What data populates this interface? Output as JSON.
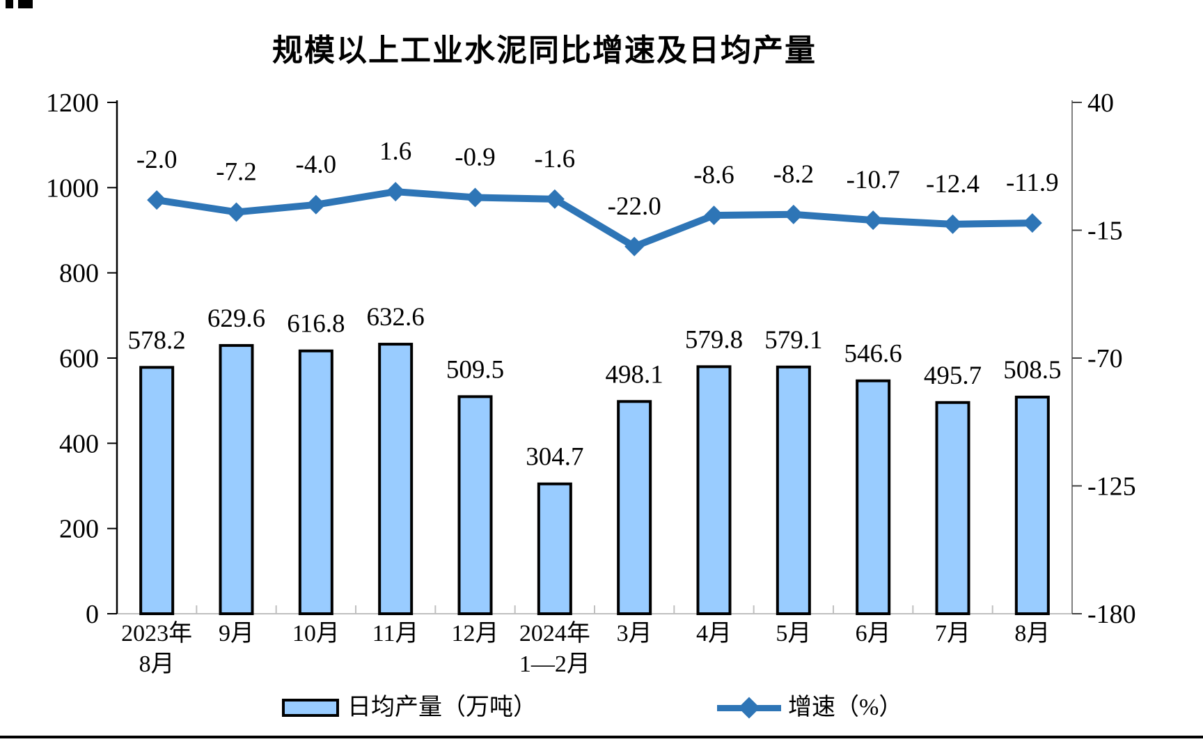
{
  "title": "规模以上工业水泥同比增速及日均产量",
  "legend": {
    "bar_label": "日均产量（万吨）",
    "line_label": "增速（%）"
  },
  "colors": {
    "bar_fill": "#99CCFF",
    "bar_border": "#000000",
    "line": "#2E75B6",
    "left_axis": "#000000",
    "right_axis": "#808080",
    "x_axis": "#BFBFBF",
    "text": "#000000"
  },
  "chart_data": {
    "type": "bar",
    "subtype": "combo-bar-line-dual-axis",
    "title": "规模以上工业水泥同比增速及日均产量",
    "categories": [
      [
        "2023年",
        "8月"
      ],
      [
        "9月"
      ],
      [
        "10月"
      ],
      [
        "11月"
      ],
      [
        "12月"
      ],
      [
        "2024年",
        "1—2月"
      ],
      [
        "3月"
      ],
      [
        "4月"
      ],
      [
        "5月"
      ],
      [
        "6月"
      ],
      [
        "7月"
      ],
      [
        "8月"
      ]
    ],
    "series": [
      {
        "name": "日均产量（万吨）",
        "type": "bar",
        "axis": "left",
        "values": [
          578.2,
          629.6,
          616.8,
          632.6,
          509.5,
          304.7,
          498.1,
          579.8,
          579.1,
          546.6,
          495.7,
          508.5
        ]
      },
      {
        "name": "增速（%）",
        "type": "line",
        "axis": "right",
        "marker": "diamond",
        "values": [
          -2.0,
          -7.2,
          -4.0,
          1.6,
          -0.9,
          -1.6,
          -22.0,
          -8.6,
          -8.2,
          -10.7,
          -12.4,
          -11.9
        ]
      }
    ],
    "left_axis": {
      "min": 0,
      "max": 1200,
      "step": 200,
      "ticks": [
        0,
        200,
        400,
        600,
        800,
        1000,
        1200
      ]
    },
    "right_axis": {
      "min": -180,
      "max": 40,
      "step": 55,
      "ticks": [
        40,
        -15,
        -70,
        -125,
        -180
      ]
    },
    "grid": false,
    "data_labels": true,
    "legend_position": "bottom"
  }
}
